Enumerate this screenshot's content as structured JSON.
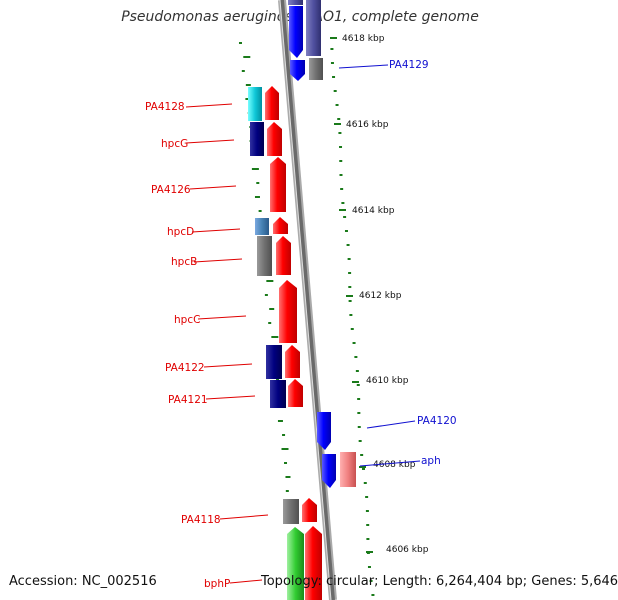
{
  "title": "Pseudomonas aeruginosa PAO1, complete genome",
  "footer": {
    "accession": "Accession: NC_002516",
    "stats": "Topology: circular; Length: 6,264,404 bp; Genes: 5,646"
  },
  "scale_labels": [
    "4618 kbp",
    "4616 kbp",
    "4614 kbp",
    "4612 kbp",
    "4610 kbp",
    "4608 kbp",
    "4606 kbp"
  ],
  "left_labels": [
    "PA4128",
    "hpcG",
    "PA4126",
    "hpcD",
    "hpcB",
    "hpcC",
    "PA4122",
    "PA4121",
    "PA4118",
    "bphP"
  ],
  "right_labels": [
    "PA4129",
    "PA4120",
    "aph"
  ],
  "colors": {
    "backbone": "#888888",
    "forward_gene": "#ff0000",
    "reverse_gene": "#0000ff",
    "label_left": "#e00000",
    "label_right": "#1010d0",
    "gc_marks": "#1a7a1a"
  }
}
